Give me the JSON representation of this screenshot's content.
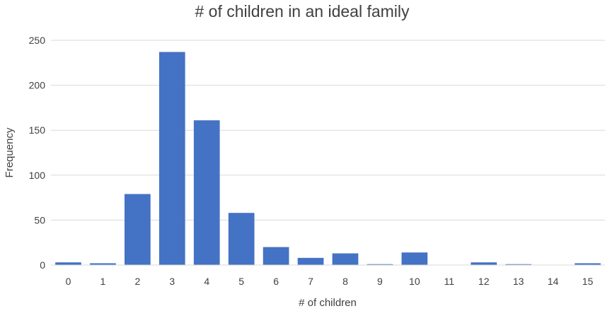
{
  "chart_data": {
    "type": "bar",
    "title": "# of children in an ideal family",
    "xlabel": "# of children",
    "ylabel": "Frequency",
    "categories": [
      "0",
      "1",
      "2",
      "3",
      "4",
      "5",
      "6",
      "7",
      "8",
      "9",
      "10",
      "11",
      "12",
      "13",
      "14",
      "15"
    ],
    "values": [
      3,
      2,
      79,
      237,
      161,
      58,
      20,
      8,
      13,
      1,
      14,
      0,
      3,
      1,
      0,
      2
    ],
    "ylim": [
      0,
      250
    ],
    "yticks": [
      0,
      50,
      100,
      150,
      200,
      250
    ],
    "grid": true,
    "legend": "none",
    "colors": {
      "bar": "#4472c4",
      "grid": "#d9d9d9",
      "text": "#404040"
    }
  }
}
